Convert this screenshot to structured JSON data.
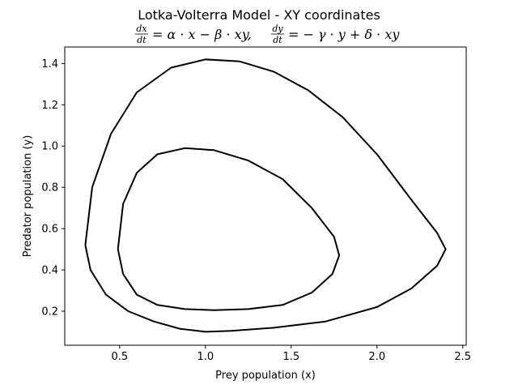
{
  "chart_data": {
    "type": "line",
    "title": "Lotka-Volterra Model - XY coordinates",
    "subtitle": {
      "eq1_lhs_num": "dx",
      "eq1_lhs_den": "dt",
      "eq1_rhs": "= α · x − β · xy,",
      "eq2_lhs_num": "dy",
      "eq2_lhs_den": "dt",
      "eq2_rhs": "= − γ · y + δ · xy"
    },
    "xlabel": "Prey population (x)",
    "ylabel": "Predator population (y)",
    "xlim": [
      0.18,
      2.52
    ],
    "ylim": [
      0.035,
      1.48
    ],
    "xticks": [
      0.5,
      1.0,
      1.5,
      2.0,
      2.5
    ],
    "xtick_labels": [
      "0.5",
      "1.0",
      "1.5",
      "2.0",
      "2.5"
    ],
    "yticks": [
      0.2,
      0.4,
      0.6,
      0.8,
      1.0,
      1.2,
      1.4
    ],
    "ytick_labels": [
      "0.2",
      "0.4",
      "0.6",
      "0.8",
      "1.0",
      "1.2",
      "1.4"
    ],
    "grid": false,
    "line_color": "#000000",
    "series": [
      {
        "x": [
          0.3,
          0.34,
          0.45,
          0.6,
          0.8,
          1.0,
          1.2,
          1.4,
          1.6,
          1.8,
          2.0,
          2.2,
          2.35,
          2.4,
          2.35,
          2.2,
          2.0,
          1.7,
          1.4,
          1.15,
          1.0,
          0.85,
          0.7,
          0.55,
          0.42,
          0.33,
          0.3
        ],
        "y": [
          0.52,
          0.8,
          1.06,
          1.26,
          1.38,
          1.42,
          1.41,
          1.36,
          1.27,
          1.14,
          0.96,
          0.74,
          0.58,
          0.5,
          0.42,
          0.31,
          0.22,
          0.15,
          0.12,
          0.105,
          0.1,
          0.115,
          0.15,
          0.2,
          0.28,
          0.4,
          0.52
        ]
      },
      {
        "x": [
          0.49,
          0.52,
          0.6,
          0.72,
          0.88,
          1.05,
          1.25,
          1.45,
          1.62,
          1.75,
          1.78,
          1.74,
          1.62,
          1.45,
          1.25,
          1.05,
          0.88,
          0.72,
          0.6,
          0.52,
          0.49
        ],
        "y": [
          0.5,
          0.72,
          0.87,
          0.96,
          0.99,
          0.98,
          0.93,
          0.84,
          0.7,
          0.56,
          0.47,
          0.38,
          0.29,
          0.23,
          0.21,
          0.205,
          0.21,
          0.23,
          0.28,
          0.38,
          0.5
        ]
      }
    ]
  }
}
